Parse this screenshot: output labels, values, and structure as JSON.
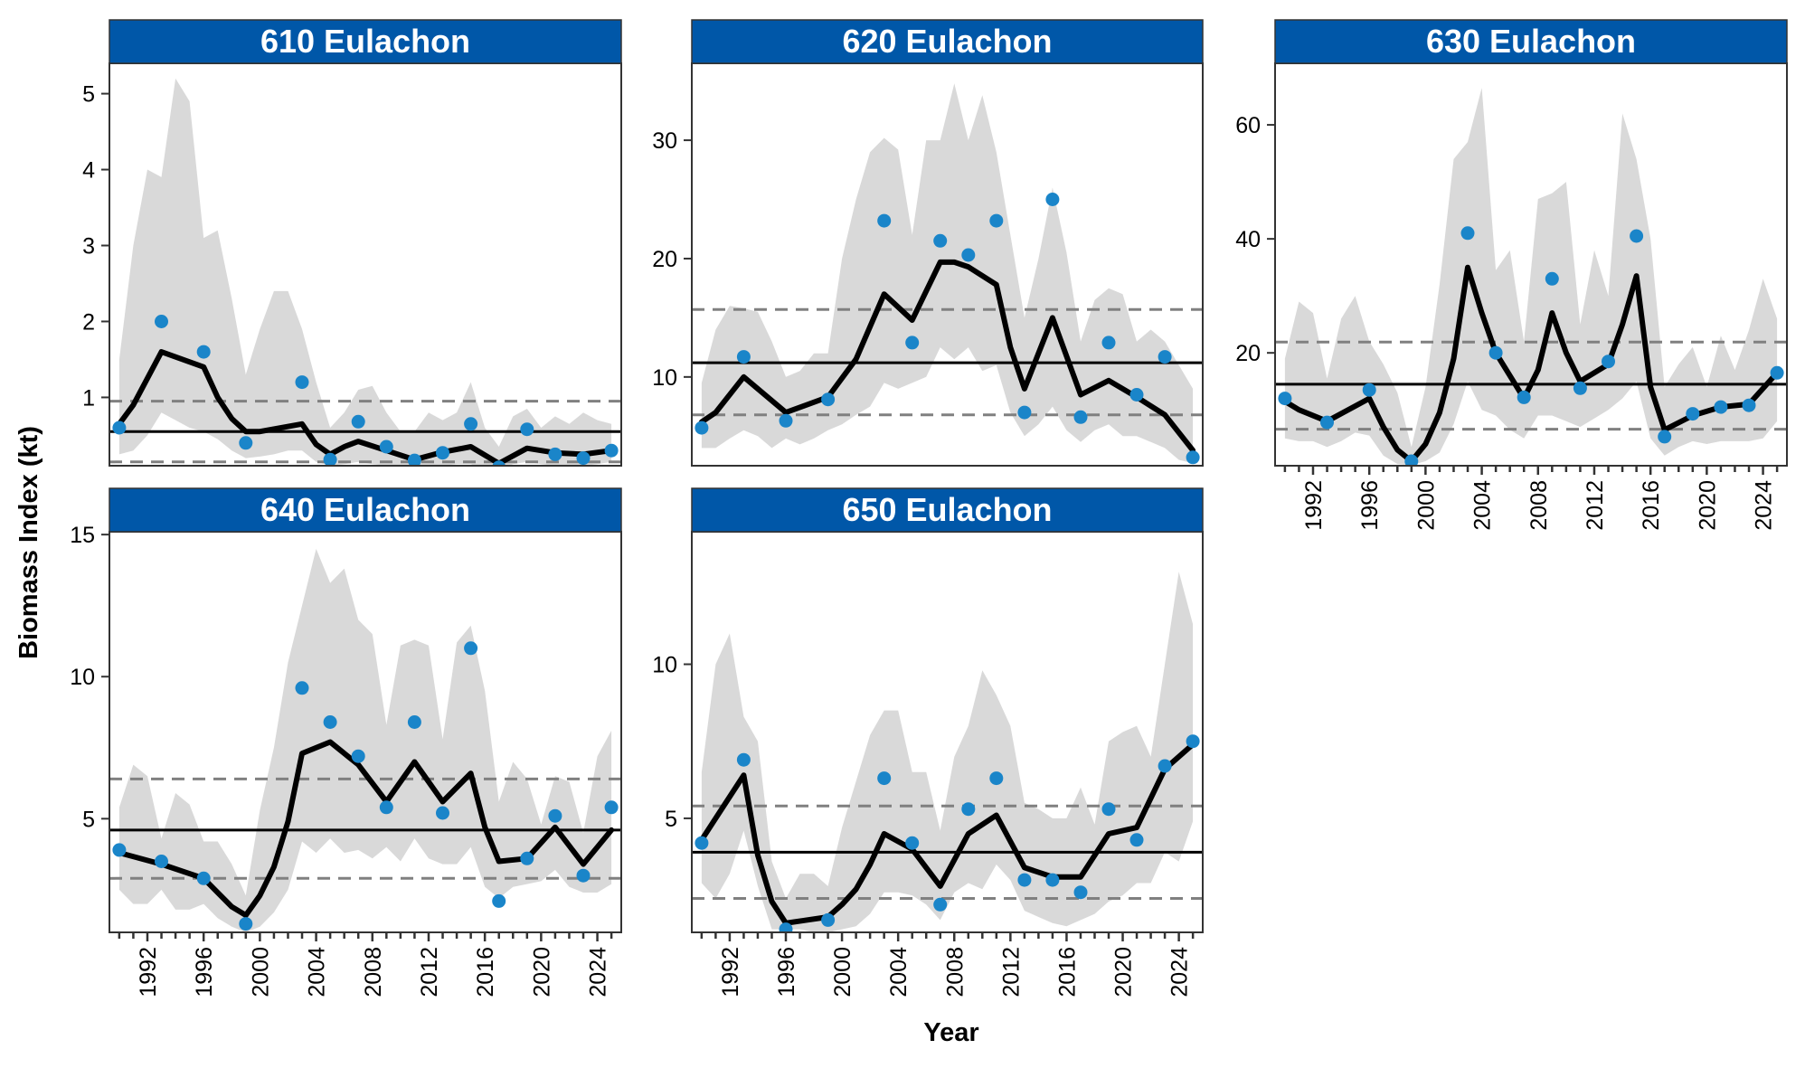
{
  "chart_data": {
    "type": "line",
    "xlabel": "Year",
    "ylabel": "Biomass Index (kt)",
    "x_ticks": [
      1992,
      1996,
      2000,
      2004,
      2008,
      2012,
      2016,
      2020,
      2024
    ],
    "xlim": [
      1989.3,
      2025.7
    ],
    "colors": {
      "strip": "#0057A8",
      "points": "#1A85C9",
      "line": "#000000",
      "ribbon": "#D9D9D9",
      "reference": "#000000",
      "bounds": "#808080"
    },
    "panels": [
      {
        "title": "610 Eulachon",
        "ylim": [
          0.1,
          5.4
        ],
        "y_ticks": [
          1,
          2,
          3,
          4,
          5
        ],
        "mean": 0.55,
        "lower": 0.15,
        "upper": 0.95,
        "line": {
          "x": [
            1990,
            1991,
            1993,
            1996,
            1997,
            1998,
            1999,
            2000,
            2003,
            2004,
            2005,
            2006,
            2007,
            2009,
            2011,
            2013,
            2015,
            2017,
            2019,
            2021,
            2023,
            2025
          ],
          "y": [
            0.65,
            0.9,
            1.6,
            1.4,
            1.0,
            0.72,
            0.55,
            0.55,
            0.65,
            0.38,
            0.25,
            0.35,
            0.42,
            0.3,
            0.18,
            0.28,
            0.35,
            0.13,
            0.33,
            0.27,
            0.25,
            0.3
          ]
        },
        "points": {
          "x": [
            1990,
            1993,
            1996,
            1999,
            2003,
            2005,
            2007,
            2009,
            2011,
            2013,
            2015,
            2017,
            2019,
            2021,
            2023,
            2025
          ],
          "y": [
            0.6,
            2.0,
            1.6,
            0.4,
            1.2,
            0.18,
            0.68,
            0.35,
            0.17,
            0.27,
            0.65,
            0.08,
            0.58,
            0.25,
            0.2,
            0.3
          ]
        },
        "ribbon": {
          "x": [
            1990,
            1991,
            1992,
            1993,
            1994,
            1995,
            1996,
            1997,
            1998,
            1999,
            2000,
            2001,
            2002,
            2003,
            2004,
            2005,
            2006,
            2007,
            2008,
            2009,
            2010,
            2011,
            2012,
            2013,
            2014,
            2015,
            2016,
            2017,
            2018,
            2019,
            2020,
            2021,
            2022,
            2023,
            2024,
            2025
          ],
          "lo": [
            0.25,
            0.3,
            0.5,
            0.8,
            0.7,
            0.6,
            0.55,
            0.45,
            0.3,
            0.2,
            0.22,
            0.25,
            0.3,
            0.3,
            0.15,
            0.1,
            0.12,
            0.15,
            0.12,
            0.1,
            0.08,
            0.05,
            0.08,
            0.1,
            0.12,
            0.12,
            0.05,
            0.05,
            0.12,
            0.15,
            0.12,
            0.1,
            0.1,
            0.1,
            0.12,
            0.15
          ],
          "hi": [
            1.5,
            3.0,
            4.0,
            3.9,
            5.2,
            4.9,
            3.1,
            3.2,
            2.3,
            1.3,
            1.9,
            2.4,
            2.4,
            1.9,
            1.2,
            0.6,
            0.8,
            1.1,
            1.15,
            0.8,
            0.55,
            0.55,
            0.8,
            0.7,
            0.8,
            1.2,
            0.6,
            0.35,
            0.75,
            0.85,
            0.6,
            0.75,
            0.65,
            0.8,
            0.7,
            0.65
          ]
        }
      },
      {
        "title": "620 Eulachon",
        "ylim": [
          2.5,
          36.5
        ],
        "y_ticks": [
          10,
          20,
          30
        ],
        "mean": 11.2,
        "lower": 6.8,
        "upper": 15.7,
        "line": {
          "x": [
            1990,
            1991,
            1993,
            1996,
            1999,
            2001,
            2003,
            2005,
            2007,
            2008,
            2009,
            2011,
            2012,
            2013,
            2015,
            2017,
            2019,
            2021,
            2023,
            2025
          ],
          "y": [
            6.2,
            7.0,
            10.0,
            7.0,
            8.3,
            11.5,
            17.0,
            14.8,
            19.7,
            19.7,
            19.3,
            17.8,
            12.5,
            9.0,
            15.0,
            8.5,
            9.7,
            8.3,
            6.8,
            3.8
          ]
        },
        "points": {
          "x": [
            1990,
            1993,
            1996,
            1999,
            2003,
            2005,
            2007,
            2009,
            2011,
            2013,
            2015,
            2017,
            2019,
            2021,
            2023,
            2025
          ],
          "y": [
            5.7,
            11.7,
            6.3,
            8.1,
            23.2,
            12.9,
            21.5,
            20.3,
            23.2,
            7.0,
            25.0,
            6.6,
            12.9,
            8.5,
            11.7,
            3.2
          ]
        },
        "ribbon": {
          "x": [
            1990,
            1991,
            1992,
            1993,
            1994,
            1995,
            1996,
            1997,
            1998,
            1999,
            2000,
            2001,
            2002,
            2003,
            2004,
            2005,
            2006,
            2007,
            2008,
            2009,
            2010,
            2011,
            2012,
            2013,
            2014,
            2015,
            2016,
            2017,
            2018,
            2019,
            2020,
            2021,
            2022,
            2023,
            2024,
            2025
          ],
          "lo": [
            4.0,
            4.0,
            4.8,
            5.5,
            5.0,
            4.0,
            4.8,
            4.3,
            4.8,
            5.5,
            6.0,
            6.8,
            7.5,
            9.5,
            9.0,
            9.5,
            10.0,
            12.5,
            11.5,
            12.5,
            10.5,
            11.0,
            7.0,
            5.0,
            6.0,
            7.5,
            5.5,
            4.5,
            5.5,
            6.0,
            5.0,
            5.0,
            4.5,
            4.0,
            3.0,
            2.7
          ],
          "hi": [
            9.5,
            14.0,
            16.0,
            15.8,
            15.5,
            13.0,
            10.0,
            10.5,
            12.0,
            12.0,
            20.0,
            25.0,
            29.0,
            30.2,
            29.2,
            22.0,
            30.0,
            30.0,
            34.8,
            30.0,
            33.8,
            29.0,
            22.0,
            15.0,
            20.0,
            26.0,
            20.5,
            13.0,
            16.5,
            17.5,
            17.0,
            13.0,
            14.0,
            13.0,
            11.0,
            9.0
          ]
        }
      },
      {
        "title": "630 Eulachon",
        "ylim": [
          0.2,
          70.8
        ],
        "y_ticks": [
          20,
          40,
          60
        ],
        "mean": 14.5,
        "lower": 6.6,
        "upper": 21.9,
        "line": {
          "x": [
            1990,
            1991,
            1993,
            1996,
            1997,
            1998,
            1999,
            2000,
            2001,
            2002,
            2003,
            2004,
            2005,
            2007,
            2008,
            2009,
            2010,
            2011,
            2013,
            2014,
            2015,
            2016,
            2017,
            2019,
            2021,
            2023,
            2025
          ],
          "y": [
            11.5,
            10.0,
            8.0,
            12.0,
            7.0,
            3.0,
            1.0,
            4.0,
            9.5,
            19.0,
            35.0,
            27.0,
            20.0,
            12.0,
            17.0,
            27.0,
            20.0,
            15.0,
            18.0,
            25.0,
            33.5,
            14.0,
            6.5,
            9.0,
            10.5,
            11.0,
            16.5
          ]
        },
        "points": {
          "x": [
            1990,
            1993,
            1996,
            1999,
            2003,
            2005,
            2007,
            2009,
            2011,
            2013,
            2015,
            2017,
            2019,
            2021,
            2023,
            2025
          ],
          "y": [
            12.0,
            7.8,
            13.5,
            1.0,
            41.0,
            20.0,
            12.2,
            33.0,
            13.8,
            18.5,
            40.5,
            5.3,
            9.3,
            10.5,
            10.8,
            16.5
          ]
        },
        "ribbon": {
          "x": [
            1990,
            1991,
            1992,
            1993,
            1994,
            1995,
            1996,
            1997,
            1998,
            1999,
            2000,
            2001,
            2002,
            2003,
            2004,
            2005,
            2006,
            2007,
            2008,
            2009,
            2010,
            2011,
            2012,
            2013,
            2014,
            2015,
            2016,
            2017,
            2018,
            2019,
            2020,
            2021,
            2022,
            2023,
            2024,
            2025
          ],
          "lo": [
            5.0,
            4.5,
            4.5,
            3.5,
            4.5,
            6.0,
            5.5,
            2.0,
            0.5,
            0.3,
            1.0,
            2.5,
            7.5,
            15.0,
            10.0,
            9.0,
            6.5,
            5.0,
            9.0,
            9.0,
            8.0,
            7.0,
            8.5,
            10.0,
            12.0,
            15.0,
            5.0,
            2.0,
            3.5,
            4.5,
            4.0,
            4.5,
            4.5,
            4.5,
            5.0,
            8.0
          ],
          "hi": [
            19.0,
            29.0,
            27.0,
            15.5,
            26.0,
            30.0,
            22.0,
            18.0,
            13.0,
            3.5,
            14.0,
            32.0,
            54.0,
            57.0,
            66.5,
            34.5,
            38.0,
            22.0,
            47.0,
            48.0,
            50.0,
            25.0,
            38.0,
            30.0,
            62.0,
            54.0,
            40.0,
            14.0,
            18.0,
            21.0,
            14.0,
            23.0,
            17.0,
            24.0,
            33.0,
            26.0
          ]
        }
      },
      {
        "title": "640 Eulachon",
        "ylim": [
          1.0,
          15.1
        ],
        "y_ticks": [
          5,
          10,
          15
        ],
        "mean": 4.6,
        "lower": 2.9,
        "upper": 6.4,
        "line": {
          "x": [
            1990,
            1993,
            1996,
            1997,
            1998,
            1999,
            2000,
            2001,
            2002,
            2003,
            2005,
            2007,
            2009,
            2011,
            2013,
            2015,
            2016,
            2017,
            2019,
            2021,
            2023,
            2025
          ],
          "y": [
            3.8,
            3.4,
            2.9,
            2.4,
            1.9,
            1.6,
            2.3,
            3.3,
            4.9,
            7.3,
            7.7,
            6.9,
            5.6,
            7.0,
            5.6,
            6.6,
            4.7,
            3.5,
            3.6,
            4.7,
            3.4,
            4.6
          ]
        },
        "points": {
          "x": [
            1990,
            1993,
            1996,
            1999,
            2003,
            2005,
            2007,
            2009,
            2011,
            2013,
            2015,
            2017,
            2019,
            2021,
            2023,
            2025
          ],
          "y": [
            3.9,
            3.5,
            2.9,
            1.3,
            9.6,
            8.4,
            7.2,
            5.4,
            8.4,
            5.2,
            11.0,
            2.1,
            3.6,
            5.1,
            3.0,
            5.4
          ]
        },
        "ribbon": {
          "x": [
            1990,
            1991,
            1992,
            1993,
            1994,
            1995,
            1996,
            1997,
            1998,
            1999,
            2000,
            2001,
            2002,
            2003,
            2004,
            2005,
            2006,
            2007,
            2008,
            2009,
            2010,
            2011,
            2012,
            2013,
            2014,
            2015,
            2016,
            2017,
            2018,
            2019,
            2020,
            2021,
            2022,
            2023,
            2024,
            2025
          ],
          "lo": [
            2.5,
            2.0,
            2.0,
            2.5,
            1.8,
            1.8,
            2.0,
            1.5,
            1.2,
            1.0,
            1.2,
            1.7,
            2.5,
            4.2,
            3.8,
            4.3,
            3.8,
            3.9,
            3.6,
            4.0,
            3.5,
            4.3,
            3.6,
            3.4,
            3.4,
            4.0,
            2.6,
            2.2,
            2.6,
            2.7,
            2.8,
            3.2,
            2.6,
            2.4,
            2.4,
            2.7
          ],
          "hi": [
            5.4,
            6.9,
            6.5,
            4.3,
            5.9,
            5.5,
            4.2,
            4.2,
            3.4,
            2.3,
            5.3,
            7.5,
            10.5,
            12.5,
            14.5,
            13.3,
            13.8,
            12.0,
            11.5,
            8.3,
            11.1,
            11.3,
            11.1,
            7.8,
            11.2,
            11.8,
            9.5,
            5.6,
            7.0,
            6.4,
            4.8,
            6.5,
            6.3,
            4.5,
            7.2,
            8.1
          ]
        }
      },
      {
        "title": "650 Eulachon",
        "ylim": [
          1.3,
          14.3
        ],
        "y_ticks": [
          5,
          10
        ],
        "mean": 3.9,
        "lower": 2.4,
        "upper": 5.4,
        "line": {
          "x": [
            1990,
            1991,
            1993,
            1994,
            1995,
            1996,
            1999,
            2000,
            2001,
            2002,
            2003,
            2005,
            2007,
            2009,
            2011,
            2013,
            2015,
            2017,
            2019,
            2021,
            2023,
            2025
          ],
          "y": [
            4.3,
            5.0,
            6.4,
            3.8,
            2.3,
            1.6,
            1.8,
            2.2,
            2.7,
            3.5,
            4.5,
            4.0,
            2.8,
            4.5,
            5.1,
            3.4,
            3.1,
            3.1,
            4.5,
            4.7,
            6.6,
            7.4
          ]
        },
        "points": {
          "x": [
            1990,
            1993,
            1996,
            1999,
            2003,
            2005,
            2007,
            2009,
            2011,
            2013,
            2015,
            2017,
            2019,
            2021,
            2023,
            2025
          ],
          "y": [
            4.2,
            6.9,
            1.4,
            1.7,
            6.3,
            4.2,
            2.2,
            5.3,
            6.3,
            3.0,
            3.0,
            2.6,
            5.3,
            4.3,
            6.7,
            7.5
          ]
        },
        "ribbon": {
          "x": [
            1990,
            1991,
            1992,
            1993,
            1994,
            1995,
            1996,
            1997,
            1998,
            1999,
            2000,
            2001,
            2002,
            2003,
            2004,
            2005,
            2006,
            2007,
            2008,
            2009,
            2010,
            2011,
            2012,
            2013,
            2014,
            2015,
            2016,
            2017,
            2018,
            2019,
            2020,
            2021,
            2022,
            2023,
            2024,
            2025
          ],
          "lo": [
            2.9,
            2.4,
            3.2,
            4.6,
            2.8,
            1.4,
            1.4,
            1.4,
            1.3,
            1.3,
            1.4,
            1.5,
            1.9,
            2.6,
            2.6,
            2.5,
            2.2,
            1.7,
            2.6,
            2.9,
            2.7,
            3.5,
            3.0,
            2.0,
            1.8,
            1.6,
            1.5,
            1.7,
            1.9,
            2.3,
            2.5,
            2.9,
            2.9,
            3.9,
            3.6,
            4.9
          ],
          "hi": [
            6.5,
            10.0,
            11.0,
            8.3,
            7.5,
            3.6,
            2.4,
            3.2,
            3.2,
            2.8,
            4.7,
            6.2,
            7.7,
            8.5,
            8.5,
            6.5,
            6.5,
            4.6,
            7.0,
            8.0,
            9.8,
            9.0,
            8.0,
            5.5,
            5.3,
            5.0,
            5.0,
            6.0,
            4.8,
            7.5,
            7.8,
            8.0,
            7.0,
            10.0,
            13.0,
            11.3
          ]
        }
      }
    ]
  }
}
